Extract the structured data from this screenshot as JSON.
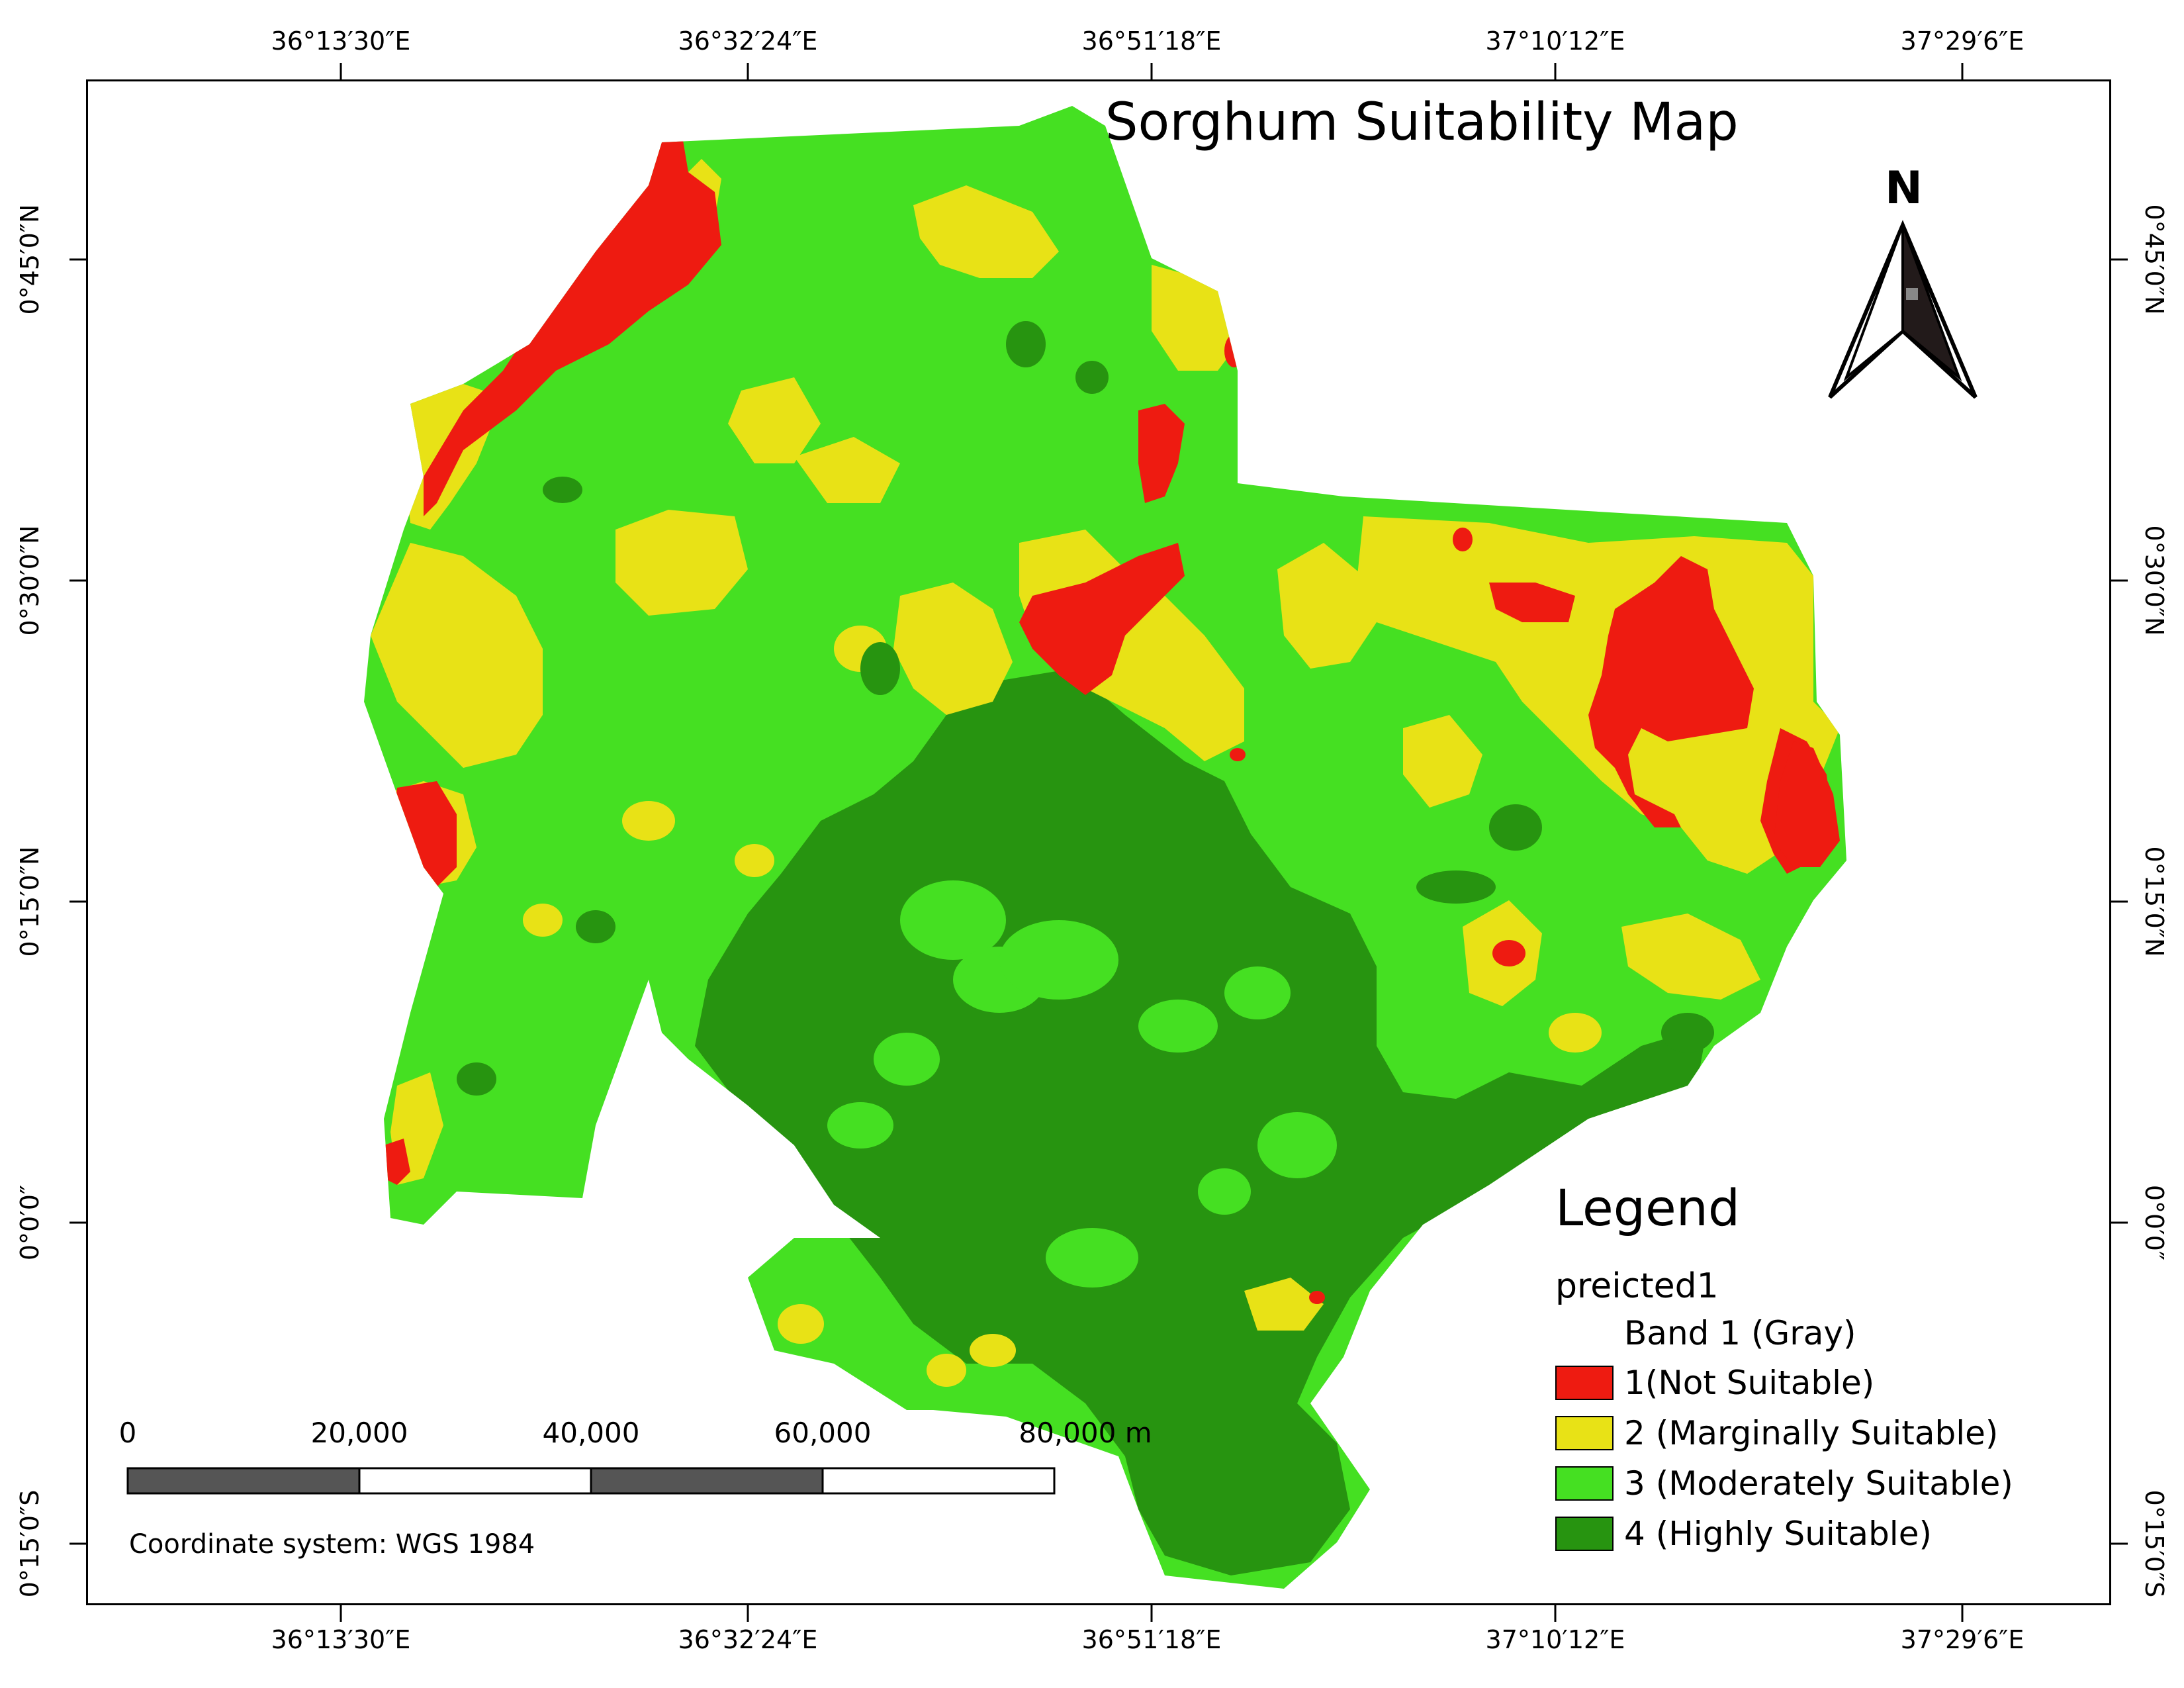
{
  "map": {
    "title": "Sorghum Suitability Map",
    "top_ticks": [
      "36°13′30″E",
      "36°32′24″E",
      "36°51′18″E",
      "37°10′12″E",
      "37°29′6″E"
    ],
    "bottom_ticks": [
      "36°13′30″E",
      "36°32′24″E",
      "36°51′18″E",
      "37°10′12″E",
      "37°29′6″E"
    ],
    "left_ticks": [
      "0°45′0″N",
      "0°30′0″N",
      "0°15′0″N",
      "0°0′0″",
      "0°15′0″S"
    ],
    "right_ticks": [
      "0°45′0″N",
      "0°30′0″N",
      "0°15′0″N",
      "0°0′0″",
      "0°15′0″S"
    ],
    "north_label": "N",
    "coordinate_system": "Coordinate system: WGS  1984"
  },
  "legend": {
    "title": "Legend",
    "layer": "preicted1",
    "band": "Band 1 (Gray)",
    "items": [
      {
        "label": "1(Not Suitable)",
        "color": "#ee1b11"
      },
      {
        "label": "2 (Marginally Suitable)",
        "color": "#e8e216"
      },
      {
        "label": "3 (Moderately Suitable)",
        "color": "#45e022"
      },
      {
        "label": "4 (Highly Suitable)",
        "color": "#279410"
      }
    ]
  },
  "scale": {
    "labels": [
      "0",
      "20,000",
      "40,000",
      "60,000",
      "80,000 m"
    ]
  }
}
